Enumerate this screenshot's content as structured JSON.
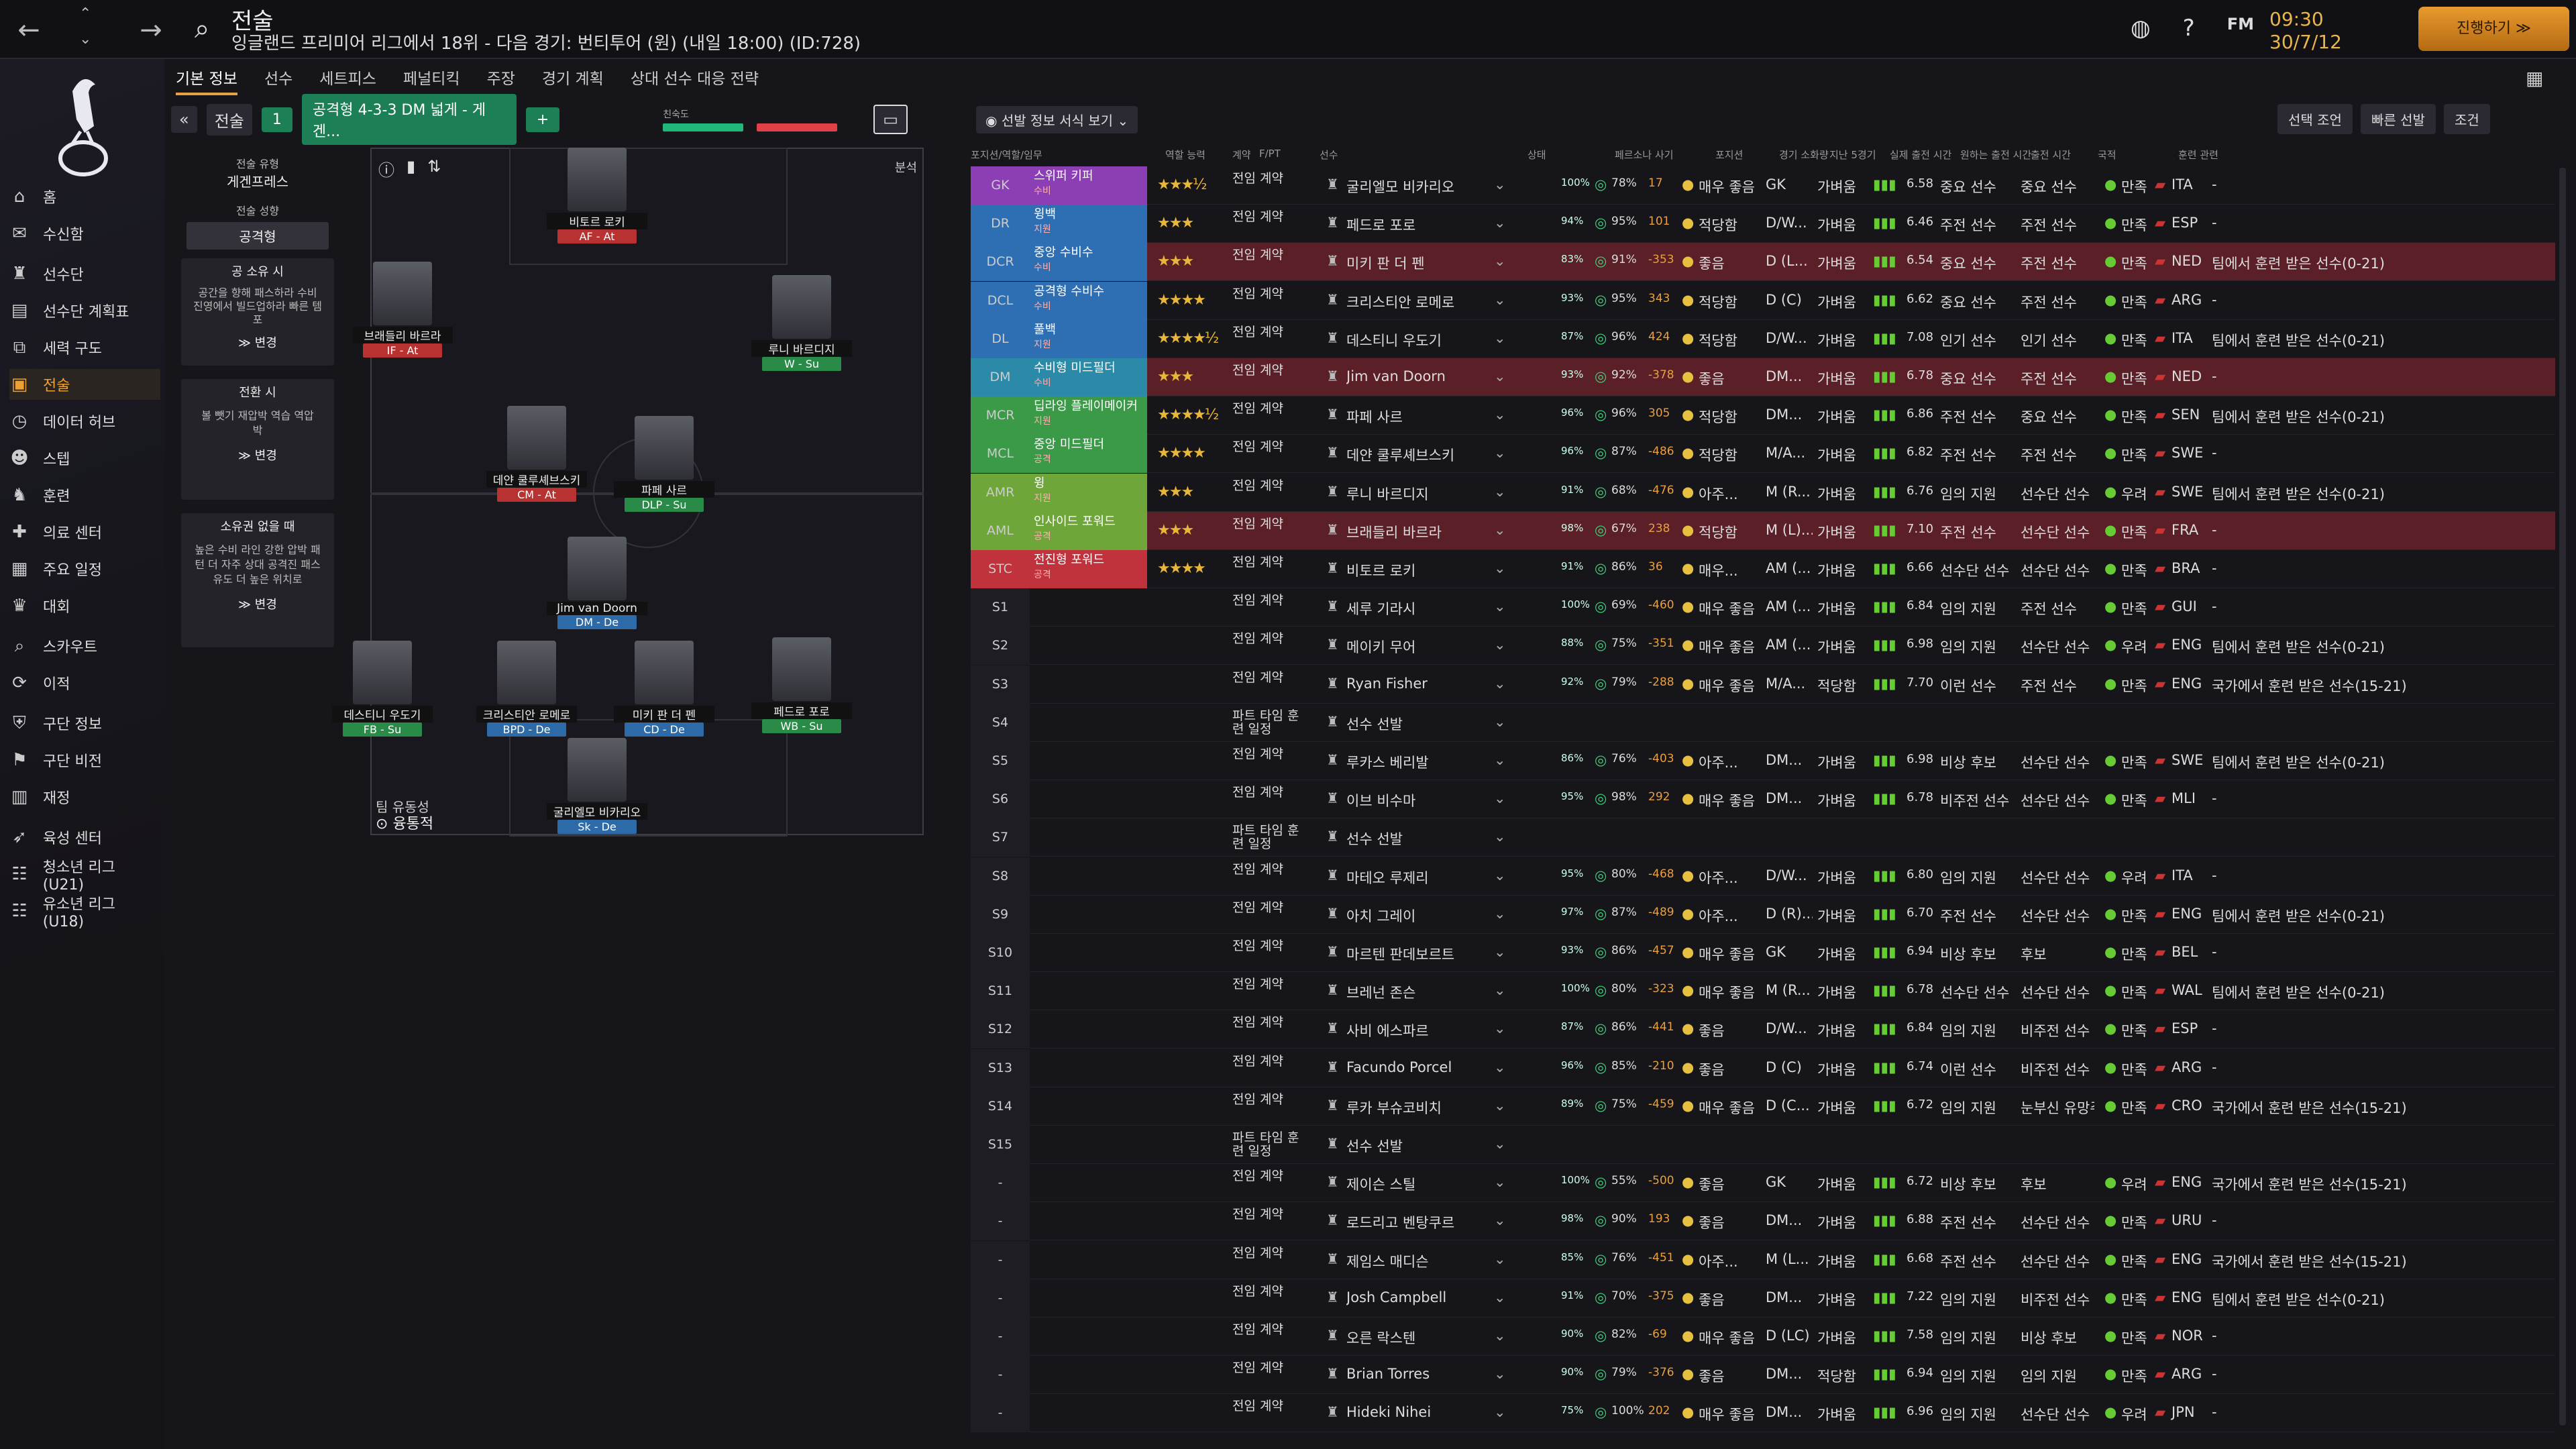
{
  "header": {
    "title": "전술",
    "subtitle": "잉글랜드 프리미어 리그에서 18위 - 다음 경기: 번티투어 (원) (내일 18:00) (ID:728)",
    "time": "09:30",
    "date": "30/7/12",
    "continue_label": "진행하기 ≫",
    "fm_label": "FM"
  },
  "sidebar": {
    "items": [
      {
        "label": "홈",
        "icon": "home-icon"
      },
      {
        "label": "수신함",
        "icon": "inbox-icon"
      },
      {
        "label": "선수단",
        "icon": "shirt-icon"
      },
      {
        "label": "선수단 계획표",
        "icon": "clipboard-icon"
      },
      {
        "label": "세력 구도",
        "icon": "hierarchy-icon"
      },
      {
        "label": "전술",
        "icon": "tactics-icon"
      },
      {
        "label": "데이터 허브",
        "icon": "data-icon"
      },
      {
        "label": "스텝",
        "icon": "staff-icon"
      },
      {
        "label": "훈련",
        "icon": "training-icon"
      },
      {
        "label": "의료 센터",
        "icon": "medical-icon"
      },
      {
        "label": "주요 일정",
        "icon": "calendar-icon"
      },
      {
        "label": "대회",
        "icon": "trophy-icon"
      },
      {
        "label": "스카우트",
        "icon": "scout-icon"
      },
      {
        "label": "이적",
        "icon": "transfer-icon"
      },
      {
        "label": "구단 정보",
        "icon": "club-icon"
      },
      {
        "label": "구단 비전",
        "icon": "vision-icon"
      },
      {
        "label": "재정",
        "icon": "finance-icon"
      },
      {
        "label": "육성 센터",
        "icon": "development-icon"
      },
      {
        "label": "청소년 리그 (U21)",
        "icon": "youth-icon"
      },
      {
        "label": "유소년 리그 (U18)",
        "icon": "youth-icon"
      }
    ]
  },
  "tabs": [
    "기본 정보",
    "선수",
    "세트피스",
    "페널티킥",
    "주장",
    "경기 계획",
    "상대 선수 대응 전략"
  ],
  "tactic": {
    "slot": "1",
    "name": "공격형 4-3-3 DM 넓게 - 게겐...",
    "familiarity_label": "친숙도"
  },
  "config": {
    "style_label": "전술 유형",
    "style_value": "게겐프레스",
    "mentality_label": "전술 성향",
    "mentality_value": "공격형",
    "in_possession": "공 소유 시",
    "in_possession_text": "공간을 향해 패스하라 수비 진영에서 빌드업하라 빠른 템포",
    "transition": "전환 시",
    "transition_text": "볼 뺏기 재압박 역습 역압박",
    "out_possession": "소유권 없을 때",
    "out_possession_text": "높은 수비 라인 강한 압박 패턴 더 자주 상대 공격진 패스 유도 더 높은 위치로",
    "change_label": "≫ 변경"
  },
  "pitch": {
    "analysis_label": "분석",
    "fluidity_label": "팀 유동성",
    "fluidity_value": "융통적",
    "players": [
      {
        "name": "비토르 로키",
        "role": "AF - At"
      },
      {
        "name": "브래들리 바르라",
        "role": "IF - At"
      },
      {
        "name": "루니 바르디지",
        "role": "W - Su"
      },
      {
        "name": "데얀 쿨루셰브스키",
        "role": "CM - At"
      },
      {
        "name": "파페 사르",
        "role": "DLP - Su"
      },
      {
        "name": "Jim van Doorn",
        "role": "DM - De"
      },
      {
        "name": "데스티니 우도기",
        "role": "FB - Su"
      },
      {
        "name": "크리스티안 로메로",
        "role": "BPD - De"
      },
      {
        "name": "미키 판 더 펜",
        "role": "CD - De"
      },
      {
        "name": "페드로 포로",
        "role": "WB - Su"
      },
      {
        "name": "굴리엘모 비카리오",
        "role": "Sk - De"
      }
    ]
  },
  "table": {
    "filter_label": "선발 정보 서식 보기",
    "buttons": [
      "선택 조언",
      "빠른 선발",
      "조건"
    ],
    "columns": [
      "포지션/역할/임무",
      "역할 능력",
      "계약",
      "F/PT",
      "선수",
      "상태",
      "페르소나 사기",
      "포지션",
      "경기 소화량",
      "지난 5경기",
      "실제 출전 시간",
      "원하는 출전 시간",
      "출전 시간",
      "국적",
      "훈련 관련"
    ],
    "rows": [
      {
        "pos": "GK",
        "role": "스위퍼 키퍼",
        "duty": "수비",
        "color": "#8c3fb4",
        "stars": "★★★½",
        "contract": "전임 계약",
        "name": "굴리엘모 비카리오",
        "cond": "100%",
        "sharp": "78%",
        "morale": "17",
        "pers": "매우 좋음",
        "position": "GK",
        "workload": "가벼움",
        "rating": "6.58",
        "play": "중요 선수",
        "want": "중요 선수",
        "satis": "만족",
        "nat": "ITA",
        "train": "-",
        "red": false
      },
      {
        "pos": "DR",
        "role": "윙백",
        "duty": "지원",
        "color": "#2e6fb4",
        "stars": "★★★",
        "contract": "전임 계약",
        "name": "페드로 포로",
        "cond": "94%",
        "sharp": "95%",
        "morale": "101",
        "pers": "적당함",
        "position": "D/W...",
        "workload": "가벼움",
        "rating": "6.46",
        "play": "주전 선수",
        "want": "주전 선수",
        "satis": "만족",
        "nat": "ESP",
        "train": "-",
        "red": false
      },
      {
        "pos": "DCR",
        "role": "중앙 수비수",
        "duty": "수비",
        "color": "#2e6fb4",
        "stars": "★★★",
        "contract": "전임 계약",
        "name": "미키 판 더 펜",
        "cond": "83%",
        "sharp": "91%",
        "morale": "-353",
        "pers": "좋음",
        "position": "D (L...",
        "workload": "가벼움",
        "rating": "6.54",
        "play": "중요 선수",
        "want": "주전 선수",
        "satis": "만족",
        "nat": "NED",
        "train": "팀에서 훈련 받은 선수(0-21)",
        "red": true
      },
      {
        "pos": "DCL",
        "role": "공격형 수비수",
        "duty": "수비",
        "color": "#2e6fb4",
        "stars": "★★★★",
        "contract": "전임 계약",
        "name": "크리스티안 로메로",
        "cond": "93%",
        "sharp": "95%",
        "morale": "343",
        "pers": "적당함",
        "position": "D (C)",
        "workload": "가벼움",
        "rating": "6.62",
        "play": "중요 선수",
        "want": "주전 선수",
        "satis": "만족",
        "nat": "ARG",
        "train": "-",
        "red": false
      },
      {
        "pos": "DL",
        "role": "풀백",
        "duty": "지원",
        "color": "#2e6fb4",
        "stars": "★★★★½",
        "contract": "전임 계약",
        "name": "데스티니 우도기",
        "cond": "87%",
        "sharp": "96%",
        "morale": "424",
        "pers": "적당함",
        "position": "D/W...",
        "workload": "가벼움",
        "rating": "7.08",
        "play": "인기 선수",
        "want": "인기 선수",
        "satis": "만족",
        "nat": "ITA",
        "train": "팀에서 훈련 받은 선수(0-21)",
        "red": false
      },
      {
        "pos": "DM",
        "role": "수비형 미드필더",
        "duty": "수비",
        "color": "#2a8aa8",
        "stars": "★★★",
        "contract": "전임 계약",
        "name": "Jim van Doorn",
        "cond": "93%",
        "sharp": "92%",
        "morale": "-378",
        "pers": "좋음",
        "position": "DM...",
        "workload": "가벼움",
        "rating": "6.78",
        "play": "중요 선수",
        "want": "주전 선수",
        "satis": "만족",
        "nat": "NED",
        "train": "-",
        "red": true
      },
      {
        "pos": "MCR",
        "role": "딥라잉 플레이메이커",
        "duty": "지원",
        "color": "#3a9a48",
        "stars": "★★★★½",
        "contract": "전임 계약",
        "name": "파페 사르",
        "cond": "96%",
        "sharp": "96%",
        "morale": "305",
        "pers": "적당함",
        "position": "DM...",
        "workload": "가벼움",
        "rating": "6.86",
        "play": "주전 선수",
        "want": "중요 선수",
        "satis": "만족",
        "nat": "SEN",
        "train": "팀에서 훈련 받은 선수(0-21)",
        "red": false
      },
      {
        "pos": "MCL",
        "role": "중앙 미드필더",
        "duty": "공격",
        "color": "#3a9a48",
        "stars": "★★★★",
        "contract": "전임 계약",
        "name": "데얀 쿨루셰브스키",
        "cond": "96%",
        "sharp": "87%",
        "morale": "-486",
        "pers": "적당함",
        "position": "M/A...",
        "workload": "가벼움",
        "rating": "6.82",
        "play": "주전 선수",
        "want": "주전 선수",
        "satis": "만족",
        "nat": "SWE",
        "train": "-",
        "red": false
      },
      {
        "pos": "AMR",
        "role": "윙",
        "duty": "지원",
        "color": "#6ea63a",
        "stars": "★★★",
        "contract": "전임 계약",
        "name": "루니 바르디지",
        "cond": "91%",
        "sharp": "68%",
        "morale": "-476",
        "pers": "아주...",
        "position": "M (R...",
        "workload": "가벼움",
        "rating": "6.76",
        "play": "임의 지원",
        "want": "선수단 선수",
        "satis": "우려",
        "nat": "SWE",
        "train": "팀에서 훈련 받은 선수(0-21)",
        "red": false
      },
      {
        "pos": "AML",
        "role": "인사이드 포워드",
        "duty": "공격",
        "color": "#6ea63a",
        "stars": "★★★",
        "contract": "전임 계약",
        "name": "브래들리 바르라",
        "cond": "98%",
        "sharp": "67%",
        "morale": "238",
        "pers": "적당함",
        "position": "M (L)...",
        "workload": "가벼움",
        "rating": "7.10",
        "play": "주전 선수",
        "want": "선수단 선수",
        "satis": "만족",
        "nat": "FRA",
        "train": "-",
        "red": true
      },
      {
        "pos": "STC",
        "role": "전진형 포워드",
        "duty": "공격",
        "color": "#c0323c",
        "stars": "★★★★",
        "contract": "전임 계약",
        "name": "비토르 로키",
        "cond": "91%",
        "sharp": "86%",
        "morale": "36",
        "pers": "매우...",
        "position": "AM (...",
        "workload": "가벼움",
        "rating": "6.66",
        "play": "선수단 선수",
        "want": "선수단 선수",
        "satis": "만족",
        "nat": "BRA",
        "train": "-",
        "red": false
      },
      {
        "pos": "S1",
        "contract": "전임 계약",
        "name": "세루 기라시",
        "cond": "100%",
        "sharp": "69%",
        "morale": "-460",
        "pers": "매우 좋음",
        "position": "AM (...",
        "workload": "가벼움",
        "rating": "6.84",
        "play": "임의 지원",
        "want": "주전 선수",
        "satis": "만족",
        "nat": "GUI",
        "train": "-"
      },
      {
        "pos": "S2",
        "contract": "전임 계약",
        "name": "메이키 무어",
        "cond": "88%",
        "sharp": "75%",
        "morale": "-351",
        "pers": "매우 좋음",
        "position": "AM (...",
        "workload": "가벼움",
        "rating": "6.98",
        "play": "임의 지원",
        "want": "선수단 선수",
        "satis": "우려",
        "nat": "ENG",
        "train": "팀에서 훈련 받은 선수(0-21)"
      },
      {
        "pos": "S3",
        "contract": "전임 계약",
        "name": "Ryan Fisher",
        "cond": "92%",
        "sharp": "79%",
        "morale": "-288",
        "pers": "매우 좋음",
        "position": "M/A...",
        "workload": "적당함",
        "rating": "7.70",
        "play": "이런 선수",
        "want": "주전 선수",
        "satis": "만족",
        "nat": "ENG",
        "train": "국가에서 훈련 받은 선수(15-21)"
      },
      {
        "pos": "S4",
        "contract": "파트 타임 훈련 일정",
        "name": "선수 선발",
        "empty": true
      },
      {
        "pos": "S5",
        "contract": "전임 계약",
        "name": "루카스 베리발",
        "cond": "86%",
        "sharp": "76%",
        "morale": "-403",
        "pers": "아주...",
        "position": "DM...",
        "workload": "가벼움",
        "rating": "6.98",
        "play": "비상 후보",
        "want": "선수단 선수",
        "satis": "만족",
        "nat": "SWE",
        "train": "팀에서 훈련 받은 선수(0-21)"
      },
      {
        "pos": "S6",
        "contract": "전임 계약",
        "name": "이브 비수마",
        "cond": "95%",
        "sharp": "98%",
        "morale": "292",
        "pers": "매우 좋음",
        "position": "DM...",
        "workload": "가벼움",
        "rating": "6.78",
        "play": "비주전 선수",
        "want": "선수단 선수",
        "satis": "만족",
        "nat": "MLI",
        "train": "-"
      },
      {
        "pos": "S7",
        "contract": "파트 타임 훈련 일정",
        "name": "선수 선발",
        "empty": true
      },
      {
        "pos": "S8",
        "contract": "전임 계약",
        "name": "마테오 루제리",
        "cond": "95%",
        "sharp": "80%",
        "morale": "-468",
        "pers": "아주...",
        "position": "D/W...",
        "workload": "가벼움",
        "rating": "6.80",
        "play": "임의 지원",
        "want": "선수단 선수",
        "satis": "우려",
        "nat": "ITA",
        "train": "-"
      },
      {
        "pos": "S9",
        "contract": "전임 계약",
        "name": "아치 그레이",
        "cond": "97%",
        "sharp": "87%",
        "morale": "-489",
        "pers": "아주...",
        "position": "D (R)...",
        "workload": "가벼움",
        "rating": "6.70",
        "play": "주전 선수",
        "want": "선수단 선수",
        "satis": "만족",
        "nat": "ENG",
        "train": "팀에서 훈련 받은 선수(0-21)"
      },
      {
        "pos": "S10",
        "contract": "전임 계약",
        "name": "마르텐 판데보르트",
        "cond": "93%",
        "sharp": "86%",
        "morale": "-457",
        "pers": "매우 좋음",
        "position": "GK",
        "workload": "가벼움",
        "rating": "6.94",
        "play": "비상 후보",
        "want": "후보",
        "satis": "만족",
        "nat": "BEL",
        "train": "-"
      },
      {
        "pos": "S11",
        "contract": "전임 계약",
        "name": "브레넌 존슨",
        "cond": "100%",
        "sharp": "80%",
        "morale": "-323",
        "pers": "매우 좋음",
        "position": "M (R...",
        "workload": "가벼움",
        "rating": "6.78",
        "play": "선수단 선수",
        "want": "선수단 선수",
        "satis": "만족",
        "nat": "WAL",
        "train": "팀에서 훈련 받은 선수(0-21)"
      },
      {
        "pos": "S12",
        "contract": "전임 계약",
        "name": "사비 에스파르",
        "cond": "87%",
        "sharp": "86%",
        "morale": "-441",
        "pers": "좋음",
        "position": "D/W...",
        "workload": "가벼움",
        "rating": "6.84",
        "play": "임의 지원",
        "want": "비주전 선수",
        "satis": "만족",
        "nat": "ESP",
        "train": "-"
      },
      {
        "pos": "S13",
        "contract": "전임 계약",
        "name": "Facundo Porcel",
        "cond": "96%",
        "sharp": "85%",
        "morale": "-210",
        "pers": "좋음",
        "position": "D (C)",
        "workload": "가벼움",
        "rating": "6.74",
        "play": "이런 선수",
        "want": "비주전 선수",
        "satis": "만족",
        "nat": "ARG",
        "train": "-"
      },
      {
        "pos": "S14",
        "contract": "전임 계약",
        "name": "루카 부슈코비치",
        "cond": "89%",
        "sharp": "75%",
        "morale": "-459",
        "pers": "매우 좋음",
        "position": "D (C...",
        "workload": "가벼움",
        "rating": "6.72",
        "play": "임의 지원",
        "want": "눈부신 유망주",
        "satis": "만족",
        "nat": "CRO",
        "train": "국가에서 훈련 받은 선수(15-21)"
      },
      {
        "pos": "S15",
        "contract": "파트 타임 훈련 일정",
        "name": "선수 선발",
        "empty": true
      },
      {
        "pos": "-",
        "contract": "전임 계약",
        "name": "제이슨 스틸",
        "cond": "100%",
        "sharp": "55%",
        "morale": "-500",
        "pers": "좋음",
        "position": "GK",
        "workload": "가벼움",
        "rating": "6.72",
        "play": "비상 후보",
        "want": "후보",
        "satis": "우려",
        "nat": "ENG",
        "train": "국가에서 훈련 받은 선수(15-21)"
      },
      {
        "pos": "-",
        "contract": "전임 계약",
        "name": "로드리고 벤탕쿠르",
        "cond": "98%",
        "sharp": "90%",
        "morale": "193",
        "pers": "좋음",
        "position": "DM...",
        "workload": "가벼움",
        "rating": "6.88",
        "play": "주전 선수",
        "want": "선수단 선수",
        "satis": "만족",
        "nat": "URU",
        "train": "-"
      },
      {
        "pos": "-",
        "contract": "전임 계약",
        "name": "제임스 매디슨",
        "cond": "85%",
        "sharp": "76%",
        "morale": "-451",
        "pers": "아주...",
        "position": "M (L...",
        "workload": "가벼움",
        "rating": "6.68",
        "play": "주전 선수",
        "want": "선수단 선수",
        "satis": "만족",
        "nat": "ENG",
        "train": "국가에서 훈련 받은 선수(15-21)"
      },
      {
        "pos": "-",
        "contract": "전임 계약",
        "name": "Josh Campbell",
        "cond": "91%",
        "sharp": "70%",
        "morale": "-375",
        "pers": "좋음",
        "position": "DM...",
        "workload": "가벼움",
        "rating": "7.22",
        "play": "임의 지원",
        "want": "비주전 선수",
        "satis": "만족",
        "nat": "ENG",
        "train": "팀에서 훈련 받은 선수(0-21)"
      },
      {
        "pos": "-",
        "contract": "전임 계약",
        "name": "오른 락스텐",
        "cond": "90%",
        "sharp": "82%",
        "morale": "-69",
        "pers": "매우 좋음",
        "position": "D (LC)",
        "workload": "가벼움",
        "rating": "7.58",
        "play": "임의 지원",
        "want": "비상 후보",
        "satis": "만족",
        "nat": "NOR",
        "train": "-"
      },
      {
        "pos": "-",
        "contract": "전임 계약",
        "name": "Brian Torres",
        "cond": "90%",
        "sharp": "79%",
        "morale": "-376",
        "pers": "좋음",
        "position": "DM...",
        "workload": "적당함",
        "rating": "6.94",
        "play": "임의 지원",
        "want": "임의 지원",
        "satis": "만족",
        "nat": "ARG",
        "train": "-"
      },
      {
        "pos": "-",
        "contract": "전임 계약",
        "name": "Hideki Nihei",
        "cond": "75%",
        "sharp": "100%",
        "morale": "202",
        "pers": "매우 좋음",
        "position": "DM...",
        "workload": "가벼움",
        "rating": "6.96",
        "play": "임의 지원",
        "want": "선수단 선수",
        "satis": "우려",
        "nat": "JPN",
        "train": "-"
      }
    ]
  }
}
